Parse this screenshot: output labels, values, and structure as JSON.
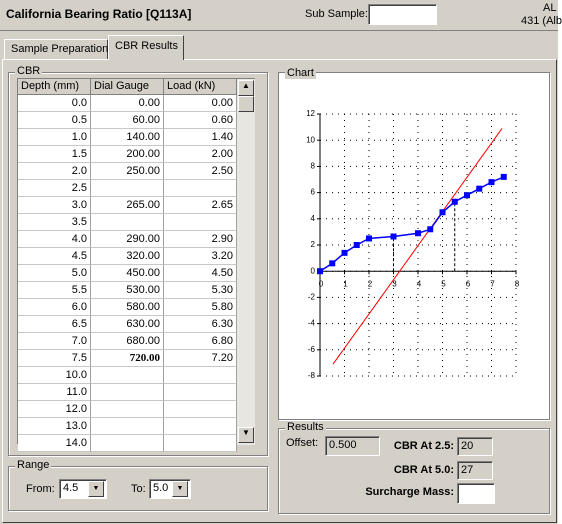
{
  "header": {
    "title": "California Bearing Ratio [Q113A]",
    "sub_sample_label": "Sub Sample:",
    "user": "AL",
    "lab": "431 (Alb"
  },
  "tabs": [
    "Sample Preparation",
    "CBR Results"
  ],
  "cbr": {
    "title": "CBR",
    "columns": [
      "Depth (mm)",
      "Dial Gauge",
      "Load (kN)"
    ],
    "bold_cell": [
      15,
      1
    ],
    "rows": [
      [
        "0.0",
        "0.00",
        "0.00"
      ],
      [
        "0.5",
        "60.00",
        "0.60"
      ],
      [
        "1.0",
        "140.00",
        "1.40"
      ],
      [
        "1.5",
        "200.00",
        "2.00"
      ],
      [
        "2.0",
        "250.00",
        "2.50"
      ],
      [
        "2.5",
        null,
        null
      ],
      [
        "3.0",
        "265.00",
        "2.65"
      ],
      [
        "3.5",
        null,
        null
      ],
      [
        "4.0",
        "290.00",
        "2.90"
      ],
      [
        "4.5",
        "320.00",
        "3.20"
      ],
      [
        "5.0",
        "450.00",
        "4.50"
      ],
      [
        "5.5",
        "530.00",
        "5.30"
      ],
      [
        "6.0",
        "580.00",
        "5.80"
      ],
      [
        "6.5",
        "630.00",
        "6.30"
      ],
      [
        "7.0",
        "680.00",
        "6.80"
      ],
      [
        "7.5",
        "720.00",
        "7.20"
      ],
      [
        "10.0",
        null,
        null
      ],
      [
        "11.0",
        null,
        null
      ],
      [
        "12.0",
        null,
        null
      ],
      [
        "13.0",
        null,
        null
      ],
      [
        "14.0",
        null,
        null
      ]
    ]
  },
  "range": {
    "title": "Range",
    "from_label": "From:",
    "from": "4.5",
    "to_label": "To:",
    "to": "5.0"
  },
  "chart_data": {
    "type": "line",
    "title": "Chart",
    "x": [
      0,
      0.5,
      1,
      1.5,
      2,
      3,
      4,
      4.5,
      5,
      5.5,
      6,
      6.5,
      7,
      7.5
    ],
    "values": [
      0,
      0.6,
      1.4,
      2,
      2.5,
      2.65,
      2.9,
      3.2,
      4.5,
      5.3,
      5.8,
      6.3,
      6.8,
      7.2
    ],
    "color": "#0000ff",
    "fit_line": {
      "x": [
        0.53,
        7.43
      ],
      "y": [
        -7.1,
        10.9
      ],
      "color": "#ff0000"
    },
    "guides": {
      "x": [
        3,
        5.5
      ],
      "y": [
        2.65,
        5.3
      ]
    },
    "xlim": [
      0,
      8
    ],
    "ylim": [
      -8,
      12
    ],
    "xticks": [
      0,
      1,
      2,
      3,
      4,
      5,
      6,
      7,
      8
    ],
    "yticks": [
      -8,
      -6,
      -4,
      -2,
      0,
      2,
      4,
      6,
      8,
      10,
      12
    ],
    "grid": true
  },
  "results": {
    "title": "Results",
    "offset_label": "Offset:",
    "offset": "0.500",
    "cbr25_label": "CBR At 2.5:",
    "cbr25": "20",
    "cbr50_label": "CBR At 5.0:",
    "cbr50": "27",
    "surcharge_label": "Surcharge Mass:"
  }
}
